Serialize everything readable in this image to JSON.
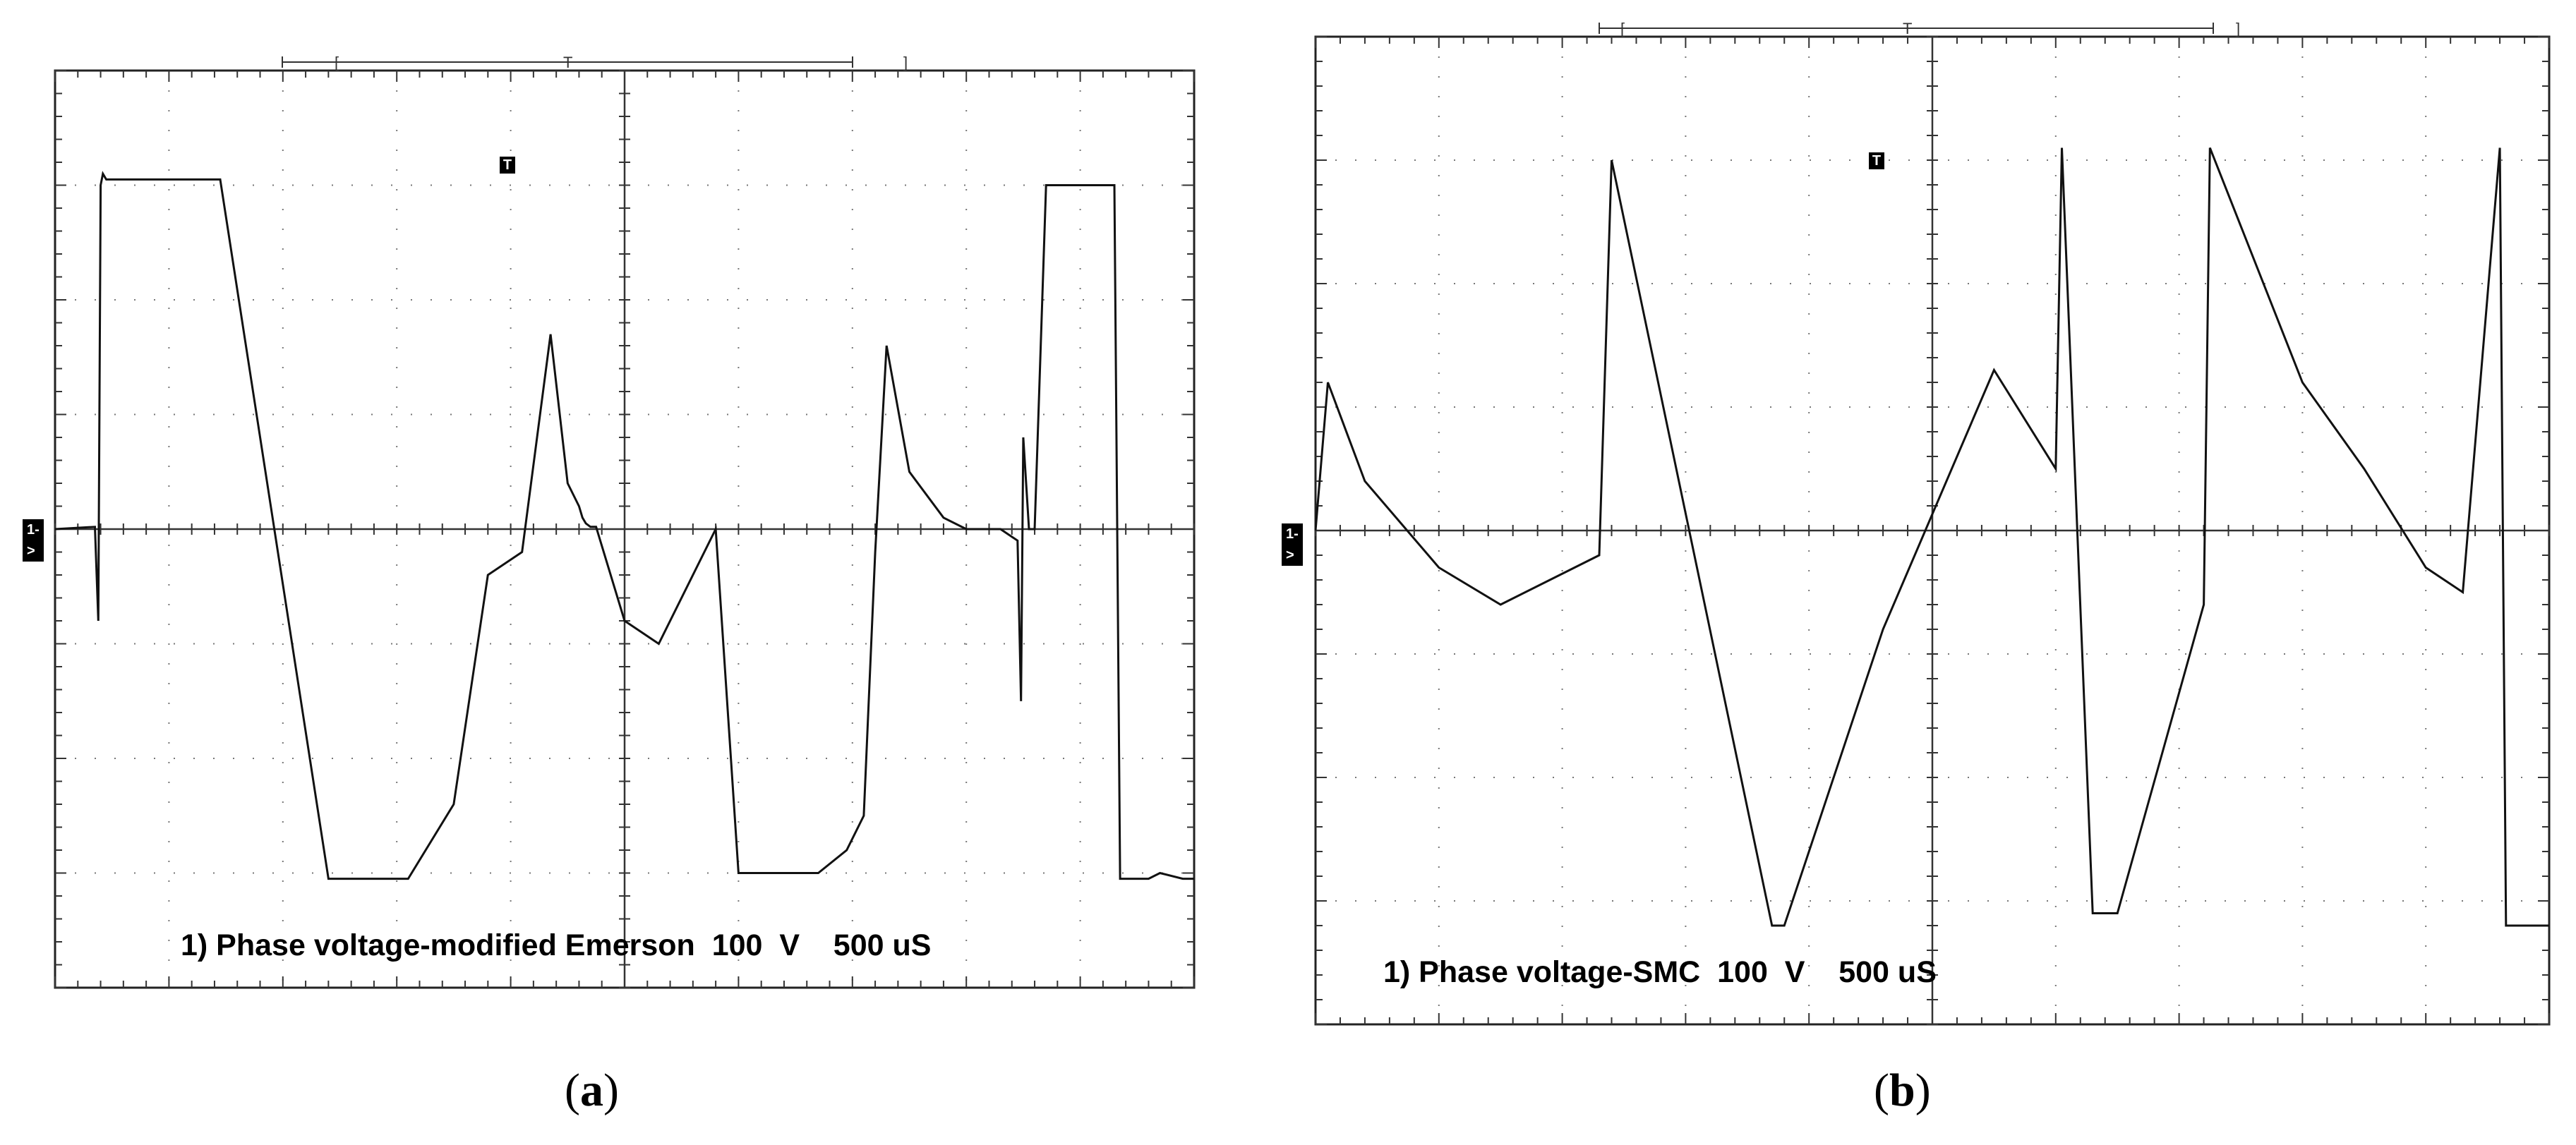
{
  "figure": {
    "panel_a_label_letter": "a",
    "panel_b_label_letter": "b"
  },
  "chart_data": [
    {
      "type": "line",
      "panel": "a",
      "caption": "1) Phase voltage-modified Emerson  100  V    500 uS",
      "channel_marker": "1->",
      "trigger_marker": "T",
      "timebase_label": "T",
      "timebase_bracket_left": "[",
      "timebase_bracket_right": "]",
      "grid": true,
      "divisions": {
        "x": 10,
        "y": 8
      },
      "ylim": [
        -4,
        4
      ],
      "xlim": [
        0,
        10
      ],
      "units": {
        "volts_per_div": "100  V",
        "time_per_div": "500 uS"
      },
      "series": [
        {
          "color": "#111111",
          "x": [
            0,
            0.35,
            0.38,
            0.4,
            0.42,
            0.45,
            0.48,
            0.5,
            1.2,
            1.45,
            2.4,
            2.5,
            2.6,
            2.75,
            2.95,
            3.1,
            3.5,
            3.8,
            4.1,
            4.35,
            4.5,
            4.6,
            4.63,
            4.66,
            4.7,
            4.75,
            5.0,
            5.3,
            5.8,
            6.0,
            6.35,
            6.38,
            6.4,
            6.5,
            6.7,
            6.95,
            7.1,
            7.2,
            7.3,
            7.5,
            7.8,
            8.0,
            8.3,
            8.45,
            8.48,
            8.5,
            8.55,
            8.6,
            8.7,
            9.0,
            9.3,
            9.35,
            9.6,
            9.7,
            9.9,
            10
          ],
          "y": [
            0,
            0.02,
            -0.8,
            3.0,
            3.1,
            3.05,
            3.05,
            3.05,
            3.05,
            3.05,
            -3.05,
            -3.05,
            -3.05,
            -3.05,
            -3.05,
            -3.05,
            -2.4,
            -0.4,
            -0.2,
            1.7,
            0.4,
            0.2,
            0.1,
            0.05,
            0.02,
            0.02,
            -0.8,
            -1.0,
            0.0,
            -3.0,
            -3.0,
            -3.0,
            -3.0,
            -3.0,
            -3.0,
            -2.8,
            -2.5,
            -0.2,
            1.6,
            0.5,
            0.1,
            0.0,
            0.0,
            -0.1,
            -1.5,
            0.8,
            0.0,
            0.0,
            3.0,
            3.0,
            3.0,
            -3.05,
            -3.05,
            -3.0,
            -3.05,
            -3.05
          ]
        }
      ]
    },
    {
      "type": "line",
      "panel": "b",
      "caption": "1) Phase voltage-SMC  100  V    500 uS",
      "channel_marker": "1->",
      "trigger_marker": "T",
      "timebase_label": "T",
      "timebase_bracket_left": "[",
      "timebase_bracket_right": "]",
      "grid": true,
      "divisions": {
        "x": 10,
        "y": 8
      },
      "ylim": [
        -4,
        4
      ],
      "xlim": [
        0,
        10
      ],
      "units": {
        "volts_per_div": "100  V",
        "time_per_div": "500 uS"
      },
      "series": [
        {
          "color": "#111111",
          "x": [
            0,
            0.1,
            0.4,
            1.0,
            1.5,
            2.3,
            2.4,
            3.7,
            3.8,
            4.6,
            5.5,
            6.0,
            6.05,
            6.3,
            6.5,
            7.2,
            7.25,
            8.0,
            8.5,
            9.0,
            9.3,
            9.6,
            9.65,
            10
          ],
          "y": [
            0,
            1.2,
            0.4,
            -0.3,
            -0.6,
            -0.2,
            3.0,
            -3.2,
            -3.2,
            -0.8,
            1.3,
            0.5,
            3.1,
            -3.1,
            -3.1,
            -0.6,
            3.1,
            1.2,
            0.5,
            -0.3,
            -0.5,
            3.1,
            -3.2,
            -3.2
          ]
        }
      ]
    }
  ]
}
